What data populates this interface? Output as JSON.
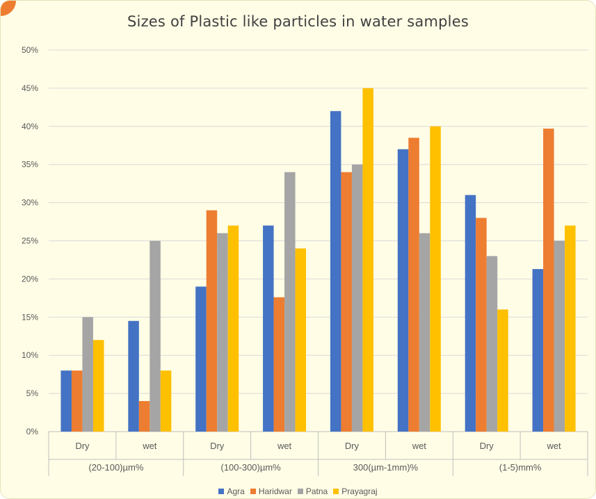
{
  "chart_data": {
    "type": "bar",
    "title": "Sizes of Plastic like particles in water samples",
    "xlabel": "",
    "ylabel": "",
    "ylim": [
      0,
      50
    ],
    "yticks": [
      "0%",
      "5%",
      "10%",
      "15%",
      "20%",
      "25%",
      "30%",
      "35%",
      "40%",
      "45%",
      "50%"
    ],
    "grid": true,
    "legend_position": "bottom",
    "groups": [
      {
        "label": "(20-100)µm%",
        "categories": [
          "Dry",
          "wet"
        ]
      },
      {
        "label": "(100-300)µm%",
        "categories": [
          "Dry",
          "wet"
        ]
      },
      {
        "label": "300(µm-1mm)%",
        "categories": [
          "Dry",
          "wet"
        ]
      },
      {
        "label": "(1-5)mm%",
        "categories": [
          "Dry",
          "wet"
        ]
      }
    ],
    "categories": [
      "Dry",
      "wet",
      "Dry",
      "wet",
      "Dry",
      "wet",
      "Dry",
      "wet"
    ],
    "series": [
      {
        "name": "Agra",
        "color": "#4472C4",
        "values": [
          8,
          14.5,
          19,
          27,
          42,
          37,
          31,
          21.3
        ]
      },
      {
        "name": "Haridwar",
        "color": "#ED7D31",
        "values": [
          8,
          4,
          29,
          17.6,
          34,
          38.5,
          28,
          39.7
        ]
      },
      {
        "name": "Patna",
        "color": "#A5A5A5",
        "values": [
          15,
          25,
          26,
          34,
          35,
          26,
          23,
          25
        ]
      },
      {
        "name": "Prayagraj",
        "color": "#FFC000",
        "values": [
          12,
          8,
          27,
          24,
          45,
          40,
          16,
          27
        ]
      }
    ]
  }
}
